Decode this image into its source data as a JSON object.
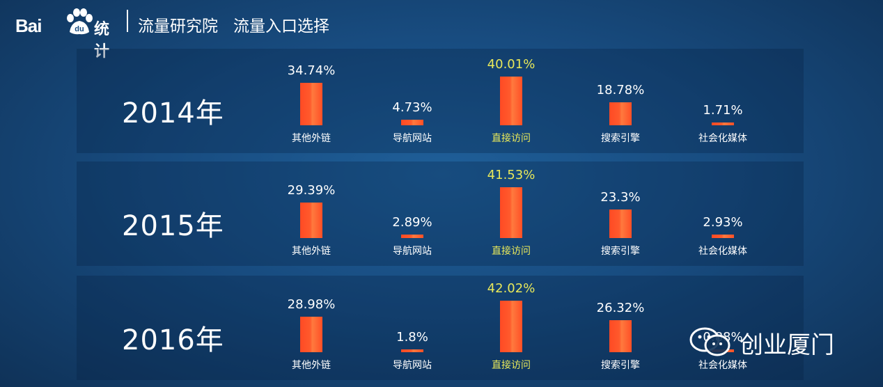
{
  "header": {
    "brand_text": "Bai",
    "brand_paw_text": "du",
    "brand_suffix": "统计",
    "title_part1": "流量研究院",
    "title_part2": "流量入口选择"
  },
  "watermark": {
    "text": "创业厦门"
  },
  "colors": {
    "bar": "#ff5528",
    "highlight": "#e8e85a",
    "background": "#184c80"
  },
  "chart_data": {
    "type": "bar",
    "categories": [
      "其他外链",
      "导航网站",
      "直接访问",
      "搜索引擎",
      "社会化媒体"
    ],
    "highlight_category": "直接访问",
    "unit": "%",
    "panels": [
      {
        "year_label": "2014年",
        "values": [
          34.74,
          4.73,
          40.01,
          18.78,
          1.71
        ],
        "value_labels": [
          "34.74%",
          "4.73%",
          "40.01%",
          "18.78%",
          "1.71%"
        ]
      },
      {
        "year_label": "2015年",
        "values": [
          29.39,
          2.89,
          41.53,
          23.3,
          2.93
        ],
        "value_labels": [
          "29.39%",
          "2.89%",
          "41.53%",
          "23.3%",
          "2.93%"
        ]
      },
      {
        "year_label": "2016年",
        "values": [
          28.98,
          1.8,
          42.02,
          26.32,
          0.88
        ],
        "value_labels": [
          "28.98%",
          "1.8%",
          "42.02%",
          "26.32%",
          "0.88%"
        ]
      }
    ]
  }
}
